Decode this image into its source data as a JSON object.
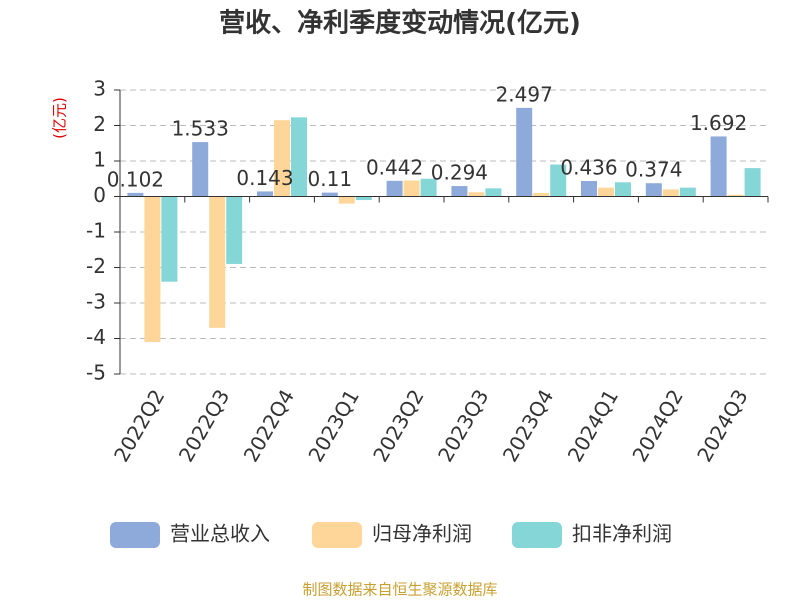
{
  "chart_data": {
    "type": "bar",
    "title": "营收、净利季度变动情况(亿元)",
    "y_label": "(亿元)",
    "categories": [
      "2022Q2",
      "2022Q3",
      "2022Q4",
      "2023Q1",
      "2023Q2",
      "2023Q3",
      "2023Q4",
      "2024Q1",
      "2024Q2",
      "2024Q3"
    ],
    "series": [
      {
        "name": "营业总收入",
        "color": "#8eaadb",
        "values": [
          0.102,
          1.533,
          0.143,
          0.11,
          0.442,
          0.294,
          2.497,
          0.436,
          0.374,
          1.692
        ]
      },
      {
        "name": "归母净利润",
        "color": "#ffd699",
        "values": [
          -4.1,
          -3.7,
          2.15,
          -0.2,
          0.45,
          0.12,
          0.1,
          0.25,
          0.2,
          0.05
        ]
      },
      {
        "name": "扣非净利润",
        "color": "#85d6d6",
        "values": [
          -2.4,
          -1.9,
          2.23,
          -0.1,
          0.5,
          0.23,
          0.9,
          0.4,
          0.25,
          0.8
        ]
      }
    ],
    "ylim": [
      -5,
      3
    ],
    "yticks": [
      -5,
      -4,
      -3,
      -2,
      -1,
      0,
      1,
      2,
      3
    ],
    "grid": true,
    "label_series": 0,
    "source": "制图数据来自恒生聚源数据库"
  }
}
